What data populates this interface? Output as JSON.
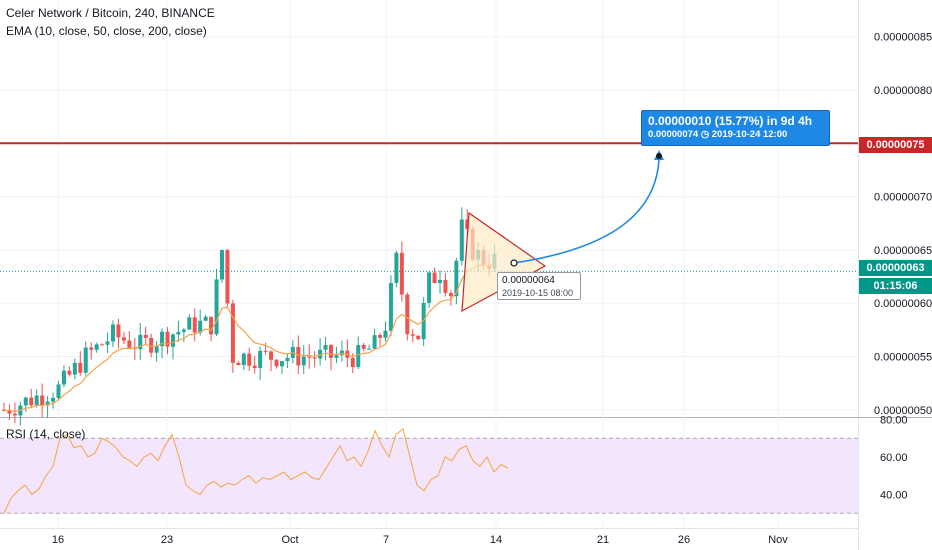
{
  "header": {
    "symbol_line": "Celer Network / Bitcoin, 240, BINANCE",
    "indicator_line": "EMA (10, close, 50, close, 200, close)"
  },
  "rsi_panel": {
    "label": "RSI (14, close)"
  },
  "price_axis": [
    "0.00000085",
    "0.00000080",
    "0.00000075",
    "0.00000070",
    "0.00000065",
    "0.00000060",
    "0.00000055",
    "0.00000050"
  ],
  "rsi_axis": [
    "80.00",
    "60.00",
    "40.00"
  ],
  "time_axis": [
    "16",
    "23",
    "Oct",
    "7",
    "14",
    "21",
    "26",
    "Nov"
  ],
  "tags": {
    "resistance": "0.00000075",
    "last_price": "0.00000063",
    "countdown": "01:15:06"
  },
  "measure": {
    "line1": "0.00000010 (15.77%) in 9d 4h",
    "line2": "0.00000074 ◷ 2019-10-24  12:00"
  },
  "tooltip": {
    "price": "0.00000064",
    "date": "2019-10-15 08:00"
  },
  "colors": {
    "up": "#26a69a",
    "down": "#ef5350",
    "ema": "#f7a24a",
    "resistance": "#c62828",
    "pennant": "#c62828",
    "pennant_fill": "#fdebc8",
    "projection": "#1e88e5",
    "last_price_line": "#009688",
    "rsi_line": "#f5a543",
    "rsi_band": "#f3e5fc",
    "rsi_band_border": "#b0a3b8"
  },
  "chart_data": {
    "type": "candlestick",
    "title": "Celer Network / Bitcoin, 240, BINANCE",
    "x_range": [
      "2019-09-12",
      "2019-11-01"
    ],
    "y_range": [
      4.85e-07,
      8.9e-07
    ],
    "ohlc_close_path": [
      [
        0,
        5e-07
      ],
      [
        5,
        5.1e-07
      ],
      [
        10,
        5.2e-07
      ],
      [
        15,
        5.5e-07
      ],
      [
        20,
        5.7e-07
      ],
      [
        25,
        5.6e-07
      ],
      [
        30,
        5.7e-07
      ],
      [
        35,
        5.8e-07
      ],
      [
        38,
        5.8e-07
      ],
      [
        40,
        6.5e-07
      ],
      [
        42,
        5.5e-07
      ],
      [
        45,
        5.5e-07
      ],
      [
        50,
        5.5e-07
      ],
      [
        55,
        5.5e-07
      ],
      [
        60,
        5.5e-07
      ],
      [
        65,
        5.5e-07
      ],
      [
        68,
        5.6e-07
      ],
      [
        70,
        5.8e-07
      ],
      [
        72,
        6.4e-07
      ],
      [
        74,
        5.8e-07
      ],
      [
        76,
        5.7e-07
      ],
      [
        78,
        6.2e-07
      ],
      [
        80,
        6.3e-07
      ],
      [
        82,
        6.1e-07
      ],
      [
        84,
        6.7e-07
      ],
      [
        86,
        6.5e-07
      ],
      [
        88,
        6.4e-07
      ],
      [
        90,
        6.4e-07
      ]
    ],
    "resistance_level": 7.5e-07,
    "last_price": 6.3e-07,
    "rsi_levels": [
      70,
      30
    ],
    "rsi_range": [
      28,
      82
    ],
    "rsi_values": [
      30,
      38,
      42,
      45,
      40,
      43,
      50,
      55,
      70,
      72,
      65,
      66,
      60,
      62,
      70,
      68,
      65,
      60,
      58,
      55,
      60,
      62,
      58,
      66,
      72,
      60,
      45,
      42,
      40,
      45,
      47,
      44,
      46,
      45,
      48,
      50,
      46,
      49,
      48,
      50,
      52,
      48,
      50,
      52,
      49,
      48,
      54,
      60,
      66,
      58,
      60,
      55,
      63,
      74,
      66,
      60,
      72,
      75,
      60,
      45,
      42,
      48,
      50,
      60,
      58,
      64,
      66,
      58,
      55,
      60,
      52,
      56,
      54
    ]
  }
}
